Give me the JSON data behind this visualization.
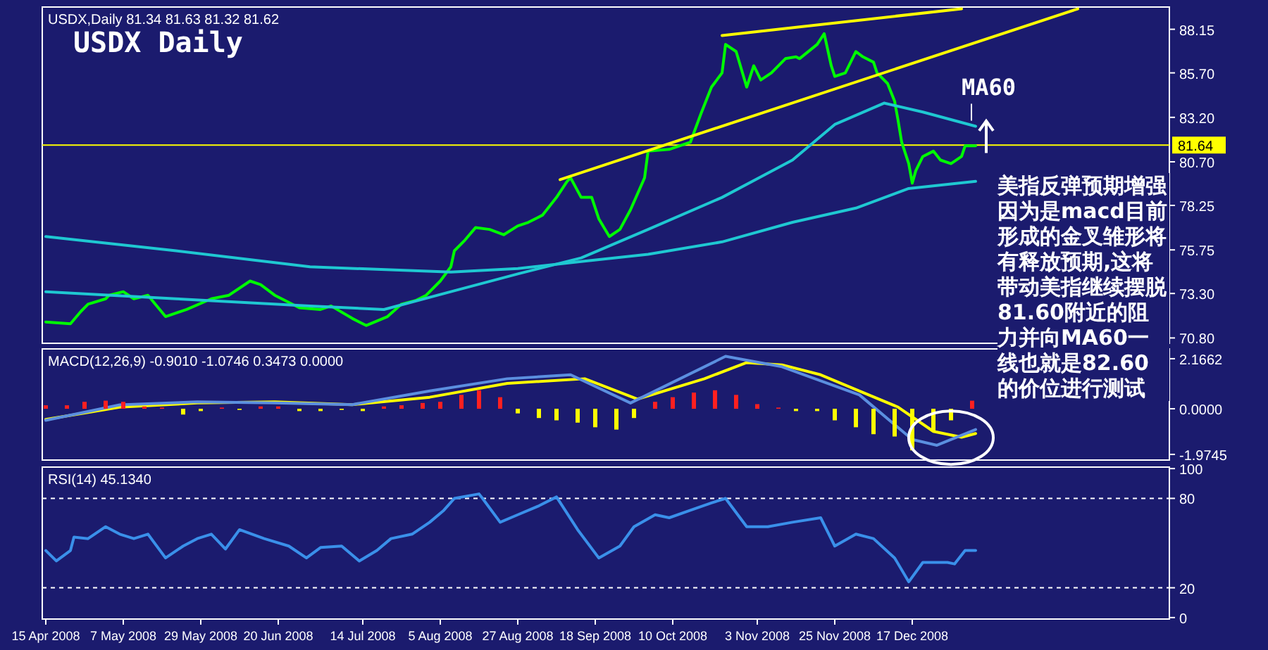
{
  "chart_data": [
    {
      "type": "line",
      "title": "USDX Daily",
      "annotations": [
        "USDX,Daily 81.34 81.63 81.32 81.62",
        "美指反弹预期增强因为是macd目前形成的金叉雏形将有释放预期,这将带动美指继续摆脱81.60附近的阻力并向MA60一线也就是82.60的价位进行测试"
      ],
      "xlim": [
        "2008-04-14",
        "2009-02-28"
      ],
      "ylim": [
        70.5,
        89.4
      ],
      "yticks": [
        {
          "value": 88.15,
          "label": "88.15"
        },
        {
          "value": 85.7,
          "label": "85.70"
        },
        {
          "value": 83.2,
          "label": "83.20"
        },
        {
          "value": 80.7,
          "label": "80.70"
        },
        {
          "value": 78.25,
          "label": "78.25"
        },
        {
          "value": 75.75,
          "label": "75.75"
        },
        {
          "value": 73.3,
          "label": "73.30"
        },
        {
          "value": 70.8,
          "label": "70.80"
        }
      ],
      "tick_labels": "y",
      "ref_lines": [
        {
          "axis": "y",
          "value": 81.64,
          "label": "81.64",
          "color": "#ffff00"
        }
      ],
      "series": [
        {
          "color": "#00ff00",
          "x": [
            "2008-04-15",
            "2008-04-22",
            "2008-04-25",
            "2008-04-27",
            "2008-05-02",
            "2008-05-03",
            "2008-05-07",
            "2008-05-10",
            "2008-05-14",
            "2008-05-19",
            "2008-05-25",
            "2008-06-01",
            "2008-06-06",
            "2008-06-12",
            "2008-06-15",
            "2008-06-19",
            "2008-06-26",
            "2008-07-02",
            "2008-07-05",
            "2008-07-11",
            "2008-07-15",
            "2008-07-21",
            "2008-07-25",
            "2008-07-29",
            "2008-08-01",
            "2008-08-05",
            "2008-08-08",
            "2008-08-09",
            "2008-08-12",
            "2008-08-15",
            "2008-08-19",
            "2008-08-23",
            "2008-08-27",
            "2008-08-30",
            "2008-09-03",
            "2008-09-07",
            "2008-09-10",
            "2008-09-11",
            "2008-09-14",
            "2008-09-17",
            "2008-09-19",
            "2008-09-22",
            "2008-09-25",
            "2008-09-28",
            "2008-10-02",
            "2008-10-03",
            "2008-10-09",
            "2008-10-15",
            "2008-10-18",
            "2008-10-21",
            "2008-10-24",
            "2008-10-25",
            "2008-10-28",
            "2008-10-31",
            "2008-11-02",
            "2008-11-04",
            "2008-11-07",
            "2008-11-11",
            "2008-11-14",
            "2008-11-15",
            "2008-11-20",
            "2008-11-22",
            "2008-11-24",
            "2008-11-25",
            "2008-11-28",
            "2008-12-01",
            "2008-12-03",
            "2008-12-06",
            "2008-12-07",
            "2008-12-10",
            "2008-12-12",
            "2008-12-13",
            "2008-12-14",
            "2008-12-16",
            "2008-12-17",
            "2008-12-18",
            "2008-12-20",
            "2008-12-23",
            "2008-12-25",
            "2008-12-28",
            "2008-12-31",
            "2009-01-01",
            "2009-01-04"
          ],
          "values": [
            71.7,
            71.6,
            72.3,
            72.7,
            73.0,
            73.2,
            73.4,
            73.0,
            73.2,
            72.0,
            72.4,
            73.0,
            73.2,
            74.0,
            73.8,
            73.2,
            72.5,
            72.4,
            72.6,
            71.9,
            71.5,
            72.0,
            72.7,
            72.9,
            73.2,
            74.0,
            74.8,
            75.7,
            76.3,
            77.0,
            76.9,
            76.6,
            77.1,
            77.3,
            77.7,
            78.7,
            79.6,
            79.8,
            78.7,
            78.7,
            77.5,
            76.5,
            76.9,
            78.0,
            79.8,
            81.3,
            81.4,
            81.8,
            83.4,
            84.9,
            85.7,
            87.3,
            86.9,
            84.9,
            86.1,
            85.3,
            85.7,
            86.5,
            86.6,
            86.5,
            87.3,
            87.9,
            86.1,
            85.5,
            85.7,
            86.9,
            86.6,
            86.3,
            85.7,
            85.1,
            84.1,
            83.0,
            81.8,
            80.6,
            79.5,
            80.2,
            81.0,
            81.3,
            80.8,
            80.6,
            81.0,
            81.6,
            81.6
          ]
        },
        {
          "color": "#1fc8d2",
          "x": [
            "2008-04-15",
            "2008-05-22",
            "2008-06-29",
            "2008-08-08",
            "2008-08-27",
            "2008-09-14",
            "2008-10-03",
            "2008-10-24",
            "2008-11-13",
            "2008-12-01",
            "2008-12-16",
            "2009-01-04"
          ],
          "values": [
            76.5,
            75.7,
            74.8,
            74.5,
            74.7,
            75.1,
            75.5,
            76.2,
            77.3,
            78.1,
            79.2,
            79.6
          ]
        },
        {
          "name": "MA60",
          "color": "#1fc8d2",
          "x": [
            "2008-04-15",
            "2008-05-22",
            "2008-06-29",
            "2008-07-20",
            "2008-08-08",
            "2008-08-27",
            "2008-09-14",
            "2008-10-03",
            "2008-10-24",
            "2008-11-13",
            "2008-11-25",
            "2008-12-09",
            "2008-12-20",
            "2009-01-04"
          ],
          "values": [
            73.4,
            73.0,
            72.6,
            72.4,
            73.4,
            74.4,
            75.3,
            76.9,
            78.7,
            80.8,
            82.8,
            84.0,
            83.5,
            82.7
          ]
        },
        {
          "color": "#ffff00",
          "x": [
            "2008-09-08",
            "2009-02-02"
          ],
          "values": [
            79.7,
            89.3
          ]
        },
        {
          "color": "#ffff00",
          "x": [
            "2008-10-24",
            "2008-12-31"
          ],
          "values": [
            87.8,
            89.3
          ]
        }
      ]
    },
    {
      "type": "bar",
      "annotations": [
        "MACD(12,26,9) -0.9010 -1.0746 0.3473 0.0000"
      ],
      "xlim": [
        "2008-04-14",
        "2009-02-28"
      ],
      "ylim": [
        -2.22,
        2.59
      ],
      "yticks": [
        2.1662,
        {
          "value": 0,
          "label": "0.0000"
        },
        -1.9745
      ],
      "tick_labels": "y",
      "series": [
        {
          "x": [
            "2008-04-15",
            "2008-04-21",
            "2008-04-26",
            "2008-05-02",
            "2008-05-07",
            "2008-05-13",
            "2008-05-18",
            "2008-05-24",
            "2008-05-29",
            "2008-06-04",
            "2008-06-09",
            "2008-06-15",
            "2008-06-20",
            "2008-06-26",
            "2008-07-02",
            "2008-07-08",
            "2008-07-14",
            "2008-07-20",
            "2008-07-25",
            "2008-07-31",
            "2008-08-05",
            "2008-08-11",
            "2008-08-16",
            "2008-08-22",
            "2008-08-27",
            "2008-09-02",
            "2008-09-07",
            "2008-09-13",
            "2008-09-18",
            "2008-09-24",
            "2008-09-29",
            "2008-10-05",
            "2008-10-10",
            "2008-10-16",
            "2008-10-22",
            "2008-10-28",
            "2008-11-03",
            "2008-11-09",
            "2008-11-14",
            "2008-11-20",
            "2008-11-25",
            "2008-12-01",
            "2008-12-06",
            "2008-12-12",
            "2008-12-17",
            "2008-12-23",
            "2008-12-28",
            "2009-01-03"
          ],
          "values": [
            0.15,
            0.15,
            0.3,
            0.35,
            0.3,
            0.1,
            0.05,
            -0.25,
            -0.1,
            0.05,
            -0.05,
            0.1,
            0.1,
            -0.1,
            -0.1,
            -0.05,
            -0.1,
            0.1,
            0.15,
            0.25,
            0.3,
            0.6,
            0.8,
            0.5,
            -0.2,
            -0.4,
            -0.5,
            -0.6,
            -0.8,
            -0.9,
            -0.4,
            0.3,
            0.5,
            0.7,
            0.8,
            0.6,
            0.2,
            0.05,
            -0.1,
            -0.1,
            -0.5,
            -0.8,
            -1.1,
            -1.2,
            -1.8,
            -1.0,
            -0.5,
            0.35
          ],
          "colors": [
            "#ff2020",
            "#ff2020",
            "#ff2020",
            "#ff2020",
            "#ff2020",
            "#ff2020",
            "#ff2020",
            "#ffff00",
            "#ffff00",
            "#ff2020",
            "#ffff00",
            "#ff2020",
            "#ff2020",
            "#ffff00",
            "#ffff00",
            "#ffff00",
            "#ffff00",
            "#ff2020",
            "#ff2020",
            "#ff2020",
            "#ff2020",
            "#ff2020",
            "#ff2020",
            "#ff2020",
            "#ffff00",
            "#ffff00",
            "#ffff00",
            "#ffff00",
            "#ffff00",
            "#ffff00",
            "#ffff00",
            "#ff2020",
            "#ff2020",
            "#ff2020",
            "#ff2020",
            "#ff2020",
            "#ff2020",
            "#ff2020",
            "#ffff00",
            "#ffff00",
            "#ffff00",
            "#ffff00",
            "#ffff00",
            "#ffff00",
            "#ffff00",
            "#ffff00",
            "#ffff00",
            "#ff2020"
          ]
        },
        {
          "type": "line",
          "color": "#ffff00",
          "x": [
            "2008-04-15",
            "2008-05-06",
            "2008-05-28",
            "2008-06-19",
            "2008-07-11",
            "2008-08-02",
            "2008-08-24",
            "2008-09-15",
            "2008-09-30",
            "2008-10-19",
            "2008-10-31",
            "2008-11-10",
            "2008-11-21",
            "2008-12-02",
            "2008-12-13",
            "2008-12-23",
            "2008-12-31",
            "2009-01-04"
          ],
          "values": [
            -0.46,
            0.07,
            0.25,
            0.3,
            0.18,
            0.5,
            1.1,
            1.3,
            0.42,
            1.3,
            2.0,
            1.9,
            1.47,
            0.77,
            0.07,
            -0.98,
            -1.23,
            -1.07
          ]
        },
        {
          "type": "line",
          "color": "#5b8fe0",
          "x": [
            "2008-04-15",
            "2008-05-06",
            "2008-05-28",
            "2008-06-19",
            "2008-07-11",
            "2008-08-02",
            "2008-08-24",
            "2008-09-11",
            "2008-09-28",
            "2008-10-25",
            "2008-11-10",
            "2008-12-02",
            "2008-12-17",
            "2008-12-24",
            "2009-01-04"
          ],
          "values": [
            -0.5,
            0.17,
            0.3,
            0.25,
            0.18,
            0.77,
            1.3,
            1.47,
            0.25,
            2.27,
            1.82,
            0.6,
            -1.33,
            -1.58,
            -0.9
          ]
        }
      ]
    },
    {
      "type": "line",
      "annotations": [
        "RSI(14) 45.1340"
      ],
      "xlim": [
        "2008-04-14",
        "2009-02-28"
      ],
      "xticks": [
        {
          "value": "2008-04-15",
          "label": "15 Apr 2008"
        },
        {
          "value": "2008-05-07",
          "label": "7 May 2008"
        },
        {
          "value": "2008-05-29",
          "label": "29 May 2008"
        },
        {
          "value": "2008-06-20",
          "label": "20 Jun 2008"
        },
        {
          "value": "2008-07-14",
          "label": "14 Jul 2008"
        },
        {
          "value": "2008-08-05",
          "label": "5 Aug 2008"
        },
        {
          "value": "2008-08-27",
          "label": "27 Aug 2008"
        },
        {
          "value": "2008-09-18",
          "label": "18 Sep 2008"
        },
        {
          "value": "2008-10-10",
          "label": "10 Oct 2008"
        },
        {
          "value": "2008-11-03",
          "label": "3 Nov 2008"
        },
        {
          "value": "2008-11-25",
          "label": "25 Nov 2008"
        },
        {
          "value": "2008-12-17",
          "label": "17 Dec 2008"
        }
      ],
      "ylim": [
        -1,
        101
      ],
      "yticks": [
        100,
        80,
        20,
        0
      ],
      "ref_lines": [
        {
          "axis": "y",
          "value": 80,
          "color": "#ffffff",
          "line_style": "dashed"
        },
        {
          "axis": "y",
          "value": 20,
          "color": "#ffffff",
          "line_style": "dashed"
        }
      ],
      "series": [
        {
          "color": "#3a90ea",
          "x": [
            "2008-04-15",
            "2008-04-18",
            "2008-04-22",
            "2008-04-23",
            "2008-04-27",
            "2008-05-02",
            "2008-05-06",
            "2008-05-10",
            "2008-05-14",
            "2008-05-19",
            "2008-05-24",
            "2008-05-28",
            "2008-06-01",
            "2008-06-05",
            "2008-06-09",
            "2008-06-16",
            "2008-06-23",
            "2008-06-28",
            "2008-07-02",
            "2008-07-08",
            "2008-07-13",
            "2008-07-18",
            "2008-07-22",
            "2008-07-28",
            "2008-08-02",
            "2008-08-06",
            "2008-08-09",
            "2008-08-16",
            "2008-08-17",
            "2008-08-22",
            "2008-08-27",
            "2008-09-02",
            "2008-09-07",
            "2008-09-13",
            "2008-09-19",
            "2008-09-25",
            "2008-09-29",
            "2008-10-05",
            "2008-10-09",
            "2008-10-15",
            "2008-10-21",
            "2008-10-25",
            "2008-10-31",
            "2008-11-06",
            "2008-11-13",
            "2008-11-21",
            "2008-11-25",
            "2008-12-01",
            "2008-12-06",
            "2008-12-12",
            "2008-12-16",
            "2008-12-20",
            "2008-12-27",
            "2008-12-29",
            "2009-01-01",
            "2009-01-04"
          ],
          "values": [
            45,
            38,
            45,
            54,
            53,
            61,
            56,
            53,
            56,
            40,
            48,
            53,
            56,
            46,
            59,
            53,
            48,
            40,
            47,
            48,
            38,
            45,
            53,
            56,
            64,
            72,
            80,
            83,
            80,
            64,
            69,
            75,
            81,
            59,
            40,
            48,
            61,
            69,
            67,
            72,
            77,
            80,
            61,
            61,
            64,
            67,
            48,
            56,
            53,
            40,
            24,
            37,
            37,
            36,
            45,
            45
          ]
        }
      ]
    }
  ]
}
